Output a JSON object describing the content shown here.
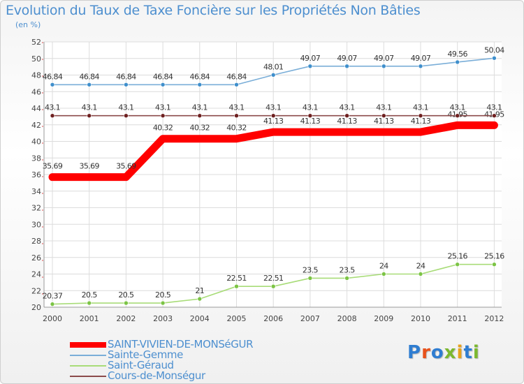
{
  "header": {
    "title": "Evolution du Taux de Taxe Foncière sur les Propriétés Non Bâties",
    "subtitle": "(en %)"
  },
  "logo": {
    "text": "Proxiti",
    "colors": [
      "#2f7dd1",
      "#e8521c",
      "#2f7dd1",
      "#7cb82f",
      "#e8a21c",
      "#2f7dd1",
      "#7cb82f"
    ]
  },
  "chart_data": {
    "type": "line",
    "title": "Evolution du Taux de Taxe Foncière sur les Propriétés Non Bâties",
    "ylabel": "(en %)",
    "ylim": [
      20,
      52
    ],
    "yticks": [
      20,
      22,
      24,
      26,
      28,
      30,
      32,
      34,
      36,
      38,
      40,
      42,
      44,
      46,
      48,
      50,
      52
    ],
    "x": [
      "2000",
      "2001",
      "2002",
      "2003",
      "2004",
      "2005",
      "2006",
      "2007",
      "2008",
      "2009",
      "2010",
      "2011",
      "2012"
    ],
    "grid": true,
    "legend_position": "bottom-left",
    "series": [
      {
        "name": "SAINT-VIVIEN-DE-MONSéGUR",
        "color": "#ff0000",
        "style": "thick",
        "values": [
          35.69,
          35.69,
          35.69,
          40.32,
          40.32,
          40.32,
          41.13,
          41.13,
          41.13,
          41.13,
          41.13,
          41.95,
          41.95
        ],
        "labels": [
          "35.69",
          "35.69",
          "35.69",
          "40.32",
          "40.32",
          "40.32",
          "41.13",
          "41.13",
          "41.13",
          "41.13",
          "41.13",
          "41.95",
          "41.95"
        ]
      },
      {
        "name": "Sainte-Gemme",
        "color": "#7aaed8",
        "marker": "#3f8fcc",
        "values": [
          46.84,
          46.84,
          46.84,
          46.84,
          46.84,
          46.84,
          48.01,
          49.07,
          49.07,
          49.07,
          49.07,
          49.56,
          50.04
        ],
        "labels": [
          "46.84",
          "46.84",
          "46.84",
          "46.84",
          "46.84",
          "46.84",
          "48.01",
          "49.07",
          "49.07",
          "49.07",
          "49.07",
          "49.56",
          "50.04"
        ]
      },
      {
        "name": "Saint-Géraud",
        "color": "#a8dc78",
        "marker": "#7cc445",
        "values": [
          20.37,
          20.5,
          20.5,
          20.5,
          21,
          22.51,
          22.51,
          23.5,
          23.5,
          24,
          24,
          25.16,
          25.16
        ],
        "labels": [
          "20.37",
          "20.5",
          "20.5",
          "20.5",
          "21",
          "22.51",
          "22.51",
          "23.5",
          "23.5",
          "24",
          "24",
          "25.16",
          "25.16"
        ]
      },
      {
        "name": "Cours-de-Monségur",
        "color": "#8b4a4a",
        "marker": "#6e2020",
        "values": [
          43.1,
          43.1,
          43.1,
          43.1,
          43.1,
          43.1,
          43.1,
          43.1,
          43.1,
          43.1,
          43.1,
          43.1,
          43.1
        ],
        "labels": [
          "43.1",
          "43.1",
          "43.1",
          "43.1",
          "43.1",
          "43.1",
          "43.1",
          "43.1",
          "43.1",
          "43.1",
          "43.1",
          "43.1",
          "43.1"
        ]
      }
    ]
  }
}
